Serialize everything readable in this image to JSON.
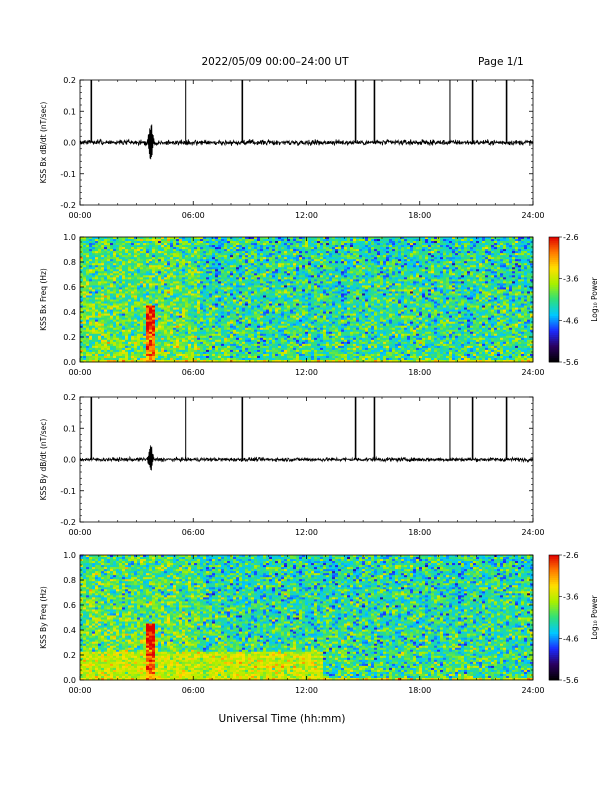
{
  "header": {
    "title": "2022/05/09  00:00–24:00 UT",
    "page": "Page 1/1"
  },
  "x_axis_title": "Universal Time (hh:mm)",
  "colors": {
    "trace": "#000000",
    "colormap": [
      "#000000",
      "#2a0060",
      "#1b2bff",
      "#00c8ff",
      "#2fe07a",
      "#a8f000",
      "#ffe000",
      "#ff7a00",
      "#e00000"
    ]
  },
  "chart_data": [
    {
      "type": "line",
      "ylabel": "KSS Bx dB/dt (nT/sec)",
      "xlim": [
        0,
        24
      ],
      "ylim": [
        -0.2,
        0.2
      ],
      "x_ticks": [
        "00:00",
        "06:00",
        "12:00",
        "18:00",
        "24:00"
      ],
      "y_ticks": [
        "0.2",
        "0.1",
        "0.0",
        "-0.1",
        "-0.2"
      ],
      "baseline": 0.0,
      "noise_amplitude": 0.004,
      "burst": {
        "time_hours": 3.75,
        "max": 0.07,
        "min": -0.06
      },
      "spikes": [
        {
          "time_hours": 0.6,
          "value": 0.2
        },
        {
          "time_hours": 5.6,
          "value": 0.2
        },
        {
          "time_hours": 8.6,
          "value": 0.2
        },
        {
          "time_hours": 14.6,
          "value": 0.2
        },
        {
          "time_hours": 15.6,
          "value": 0.2
        },
        {
          "time_hours": 19.6,
          "value": 0.2
        },
        {
          "time_hours": 20.8,
          "value": 0.2
        },
        {
          "time_hours": 22.6,
          "value": 0.2
        }
      ]
    },
    {
      "type": "heatmap",
      "ylabel": "KSS Bx Freq (Hz)",
      "colorbar_label": "Log₁₀ Power",
      "xlim": [
        0,
        24
      ],
      "ylim": [
        0,
        1.0
      ],
      "x_ticks": [
        "00:00",
        "06:00",
        "12:00",
        "18:00",
        "24:00"
      ],
      "y_ticks": [
        "1.0",
        "0.8",
        "0.6",
        "0.4",
        "0.2",
        "0.0"
      ],
      "colorbar_ticks": [
        "-2.6",
        "-3.6",
        "-4.6",
        "-5.6"
      ],
      "clim": [
        -5.6,
        -2.6
      ],
      "background_level": -4.1,
      "early_level": -3.9,
      "early_end_hours": 6.3,
      "low_band": {
        "max_freq": 0.02,
        "level": -3.5
      },
      "burst": {
        "time_hours": 3.75,
        "level": -3.1
      }
    },
    {
      "type": "line",
      "ylabel": "KSS By dB/dt (nT/sec)",
      "xlim": [
        0,
        24
      ],
      "ylim": [
        -0.2,
        0.2
      ],
      "x_ticks": [
        "00:00",
        "06:00",
        "12:00",
        "18:00",
        "24:00"
      ],
      "y_ticks": [
        "0.2",
        "0.1",
        "0.0",
        "-0.1",
        "-0.2"
      ],
      "baseline": 0.0,
      "noise_amplitude": 0.003,
      "burst": {
        "time_hours": 3.75,
        "max": 0.05,
        "min": -0.035
      },
      "spikes": [
        {
          "time_hours": 0.6,
          "value": 0.2
        },
        {
          "time_hours": 5.6,
          "value": 0.2
        },
        {
          "time_hours": 8.6,
          "value": 0.2
        },
        {
          "time_hours": 14.6,
          "value": 0.2
        },
        {
          "time_hours": 15.6,
          "value": 0.2
        },
        {
          "time_hours": 19.6,
          "value": 0.2
        },
        {
          "time_hours": 20.8,
          "value": 0.2
        },
        {
          "time_hours": 22.6,
          "value": 0.2
        }
      ]
    },
    {
      "type": "heatmap",
      "ylabel": "KSS By Freq (Hz)",
      "colorbar_label": "Log₁₀ Power",
      "xlim": [
        0,
        24
      ],
      "ylim": [
        0,
        1.0
      ],
      "x_ticks": [
        "00:00",
        "06:00",
        "12:00",
        "18:00",
        "24:00"
      ],
      "y_ticks": [
        "1.0",
        "0.8",
        "0.6",
        "0.4",
        "0.2",
        "0.0"
      ],
      "colorbar_ticks": [
        "-2.6",
        "-3.6",
        "-4.6",
        "-5.6"
      ],
      "clim": [
        -5.6,
        -2.6
      ],
      "background_level": -4.1,
      "early_level": -3.9,
      "early_end_hours": 6.3,
      "low_band": {
        "max_freq": 0.22,
        "level": -3.6,
        "end_hours": 12.9
      },
      "burst": {
        "time_hours": 3.75,
        "level": -3.1
      }
    }
  ]
}
